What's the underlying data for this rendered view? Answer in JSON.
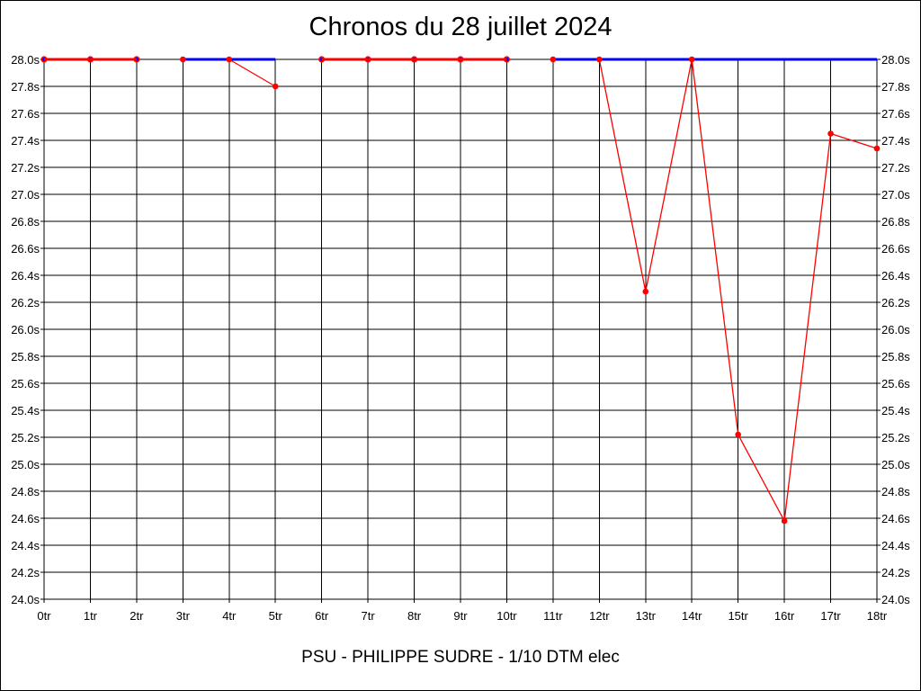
{
  "chart_data": {
    "type": "line",
    "title": "Chronos du 28 juillet 2024",
    "subtitle": "PSU - PHILIPPE SUDRE - 1/10 DTM elec",
    "xlabel": "",
    "ylabel": "",
    "x_categories": [
      "0tr",
      "1tr",
      "2tr",
      "3tr",
      "4tr",
      "5tr",
      "6tr",
      "7tr",
      "8tr",
      "9tr",
      "10tr",
      "11tr",
      "12tr",
      "13tr",
      "14tr",
      "15tr",
      "16tr",
      "17tr",
      "18tr"
    ],
    "y_tick_labels": [
      "24.0s",
      "24.2s",
      "24.4s",
      "24.6s",
      "24.8s",
      "25.0s",
      "25.2s",
      "25.4s",
      "25.6s",
      "25.8s",
      "26.0s",
      "26.2s",
      "26.4s",
      "26.6s",
      "26.8s",
      "27.0s",
      "27.2s",
      "27.4s",
      "27.6s",
      "27.8s",
      "28.0s"
    ],
    "ylim": [
      24.0,
      28.0
    ],
    "grid": true,
    "series": [
      {
        "color": "#0000ff",
        "segments": [
          {
            "x": [
              0,
              1,
              2
            ],
            "y": [
              28.0,
              28.0,
              28.0
            ]
          },
          {
            "x": [
              3,
              4,
              5
            ],
            "y": [
              28.0,
              28.0,
              28.0
            ]
          },
          {
            "x": [
              6,
              7,
              8,
              9,
              10
            ],
            "y": [
              28.0,
              28.0,
              28.0,
              28.0,
              28.0
            ]
          },
          {
            "x": [
              11,
              12,
              13,
              14,
              15,
              16,
              17,
              18
            ],
            "y": [
              28.0,
              28.0,
              28.0,
              28.0,
              28.0,
              28.0,
              28.0,
              28.0
            ]
          }
        ],
        "markers": [
          0,
          1,
          2,
          6,
          7,
          8,
          9,
          10
        ]
      },
      {
        "color": "#ff0000",
        "segments": [
          {
            "x": [
              0,
              1,
              2
            ],
            "y": [
              28.0,
              28.0,
              28.0
            ]
          },
          {
            "x": [
              4,
              5
            ],
            "y": [
              28.0,
              27.8
            ]
          },
          {
            "x": [
              6,
              7,
              8,
              9,
              10
            ],
            "y": [
              28.0,
              28.0,
              28.0,
              28.0,
              28.0
            ]
          },
          {
            "x": [
              12,
              13,
              14,
              15,
              16,
              17,
              18
            ],
            "y": [
              28.0,
              26.28,
              28.0,
              25.22,
              24.58,
              27.45,
              27.34
            ]
          }
        ],
        "markers": [
          {
            "x": 3,
            "y": 28.0
          },
          {
            "x": 4,
            "y": 28.0
          },
          {
            "x": 5,
            "y": 27.8
          },
          {
            "x": 11,
            "y": 28.0
          },
          {
            "x": 12,
            "y": 28.0
          },
          {
            "x": 13,
            "y": 26.28
          },
          {
            "x": 14,
            "y": 28.0
          },
          {
            "x": 15,
            "y": 25.22
          },
          {
            "x": 16,
            "y": 24.58
          },
          {
            "x": 17,
            "y": 27.45
          },
          {
            "x": 18,
            "y": 27.34
          }
        ]
      }
    ]
  }
}
